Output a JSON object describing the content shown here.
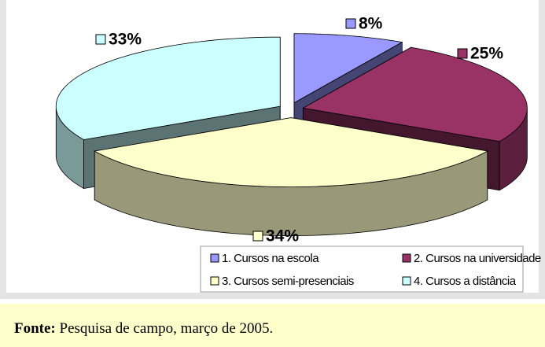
{
  "chart_data": {
    "type": "pie",
    "categories": [
      "1. Cursos na escola",
      "2. Cursos na universidade",
      "3. Cursos semi-presenciais",
      "4. Cursos a distância"
    ],
    "values": [
      8,
      25,
      34,
      33
    ],
    "value_labels": [
      "8%",
      "25%",
      "34%",
      "33%"
    ],
    "colors": [
      "#9999ff",
      "#993366",
      "#ffffcc",
      "#ccffff"
    ],
    "legend": "bottom"
  },
  "footer": {
    "label": "Fonte:",
    "text": "Pesquisa de campo, março de 2005."
  }
}
